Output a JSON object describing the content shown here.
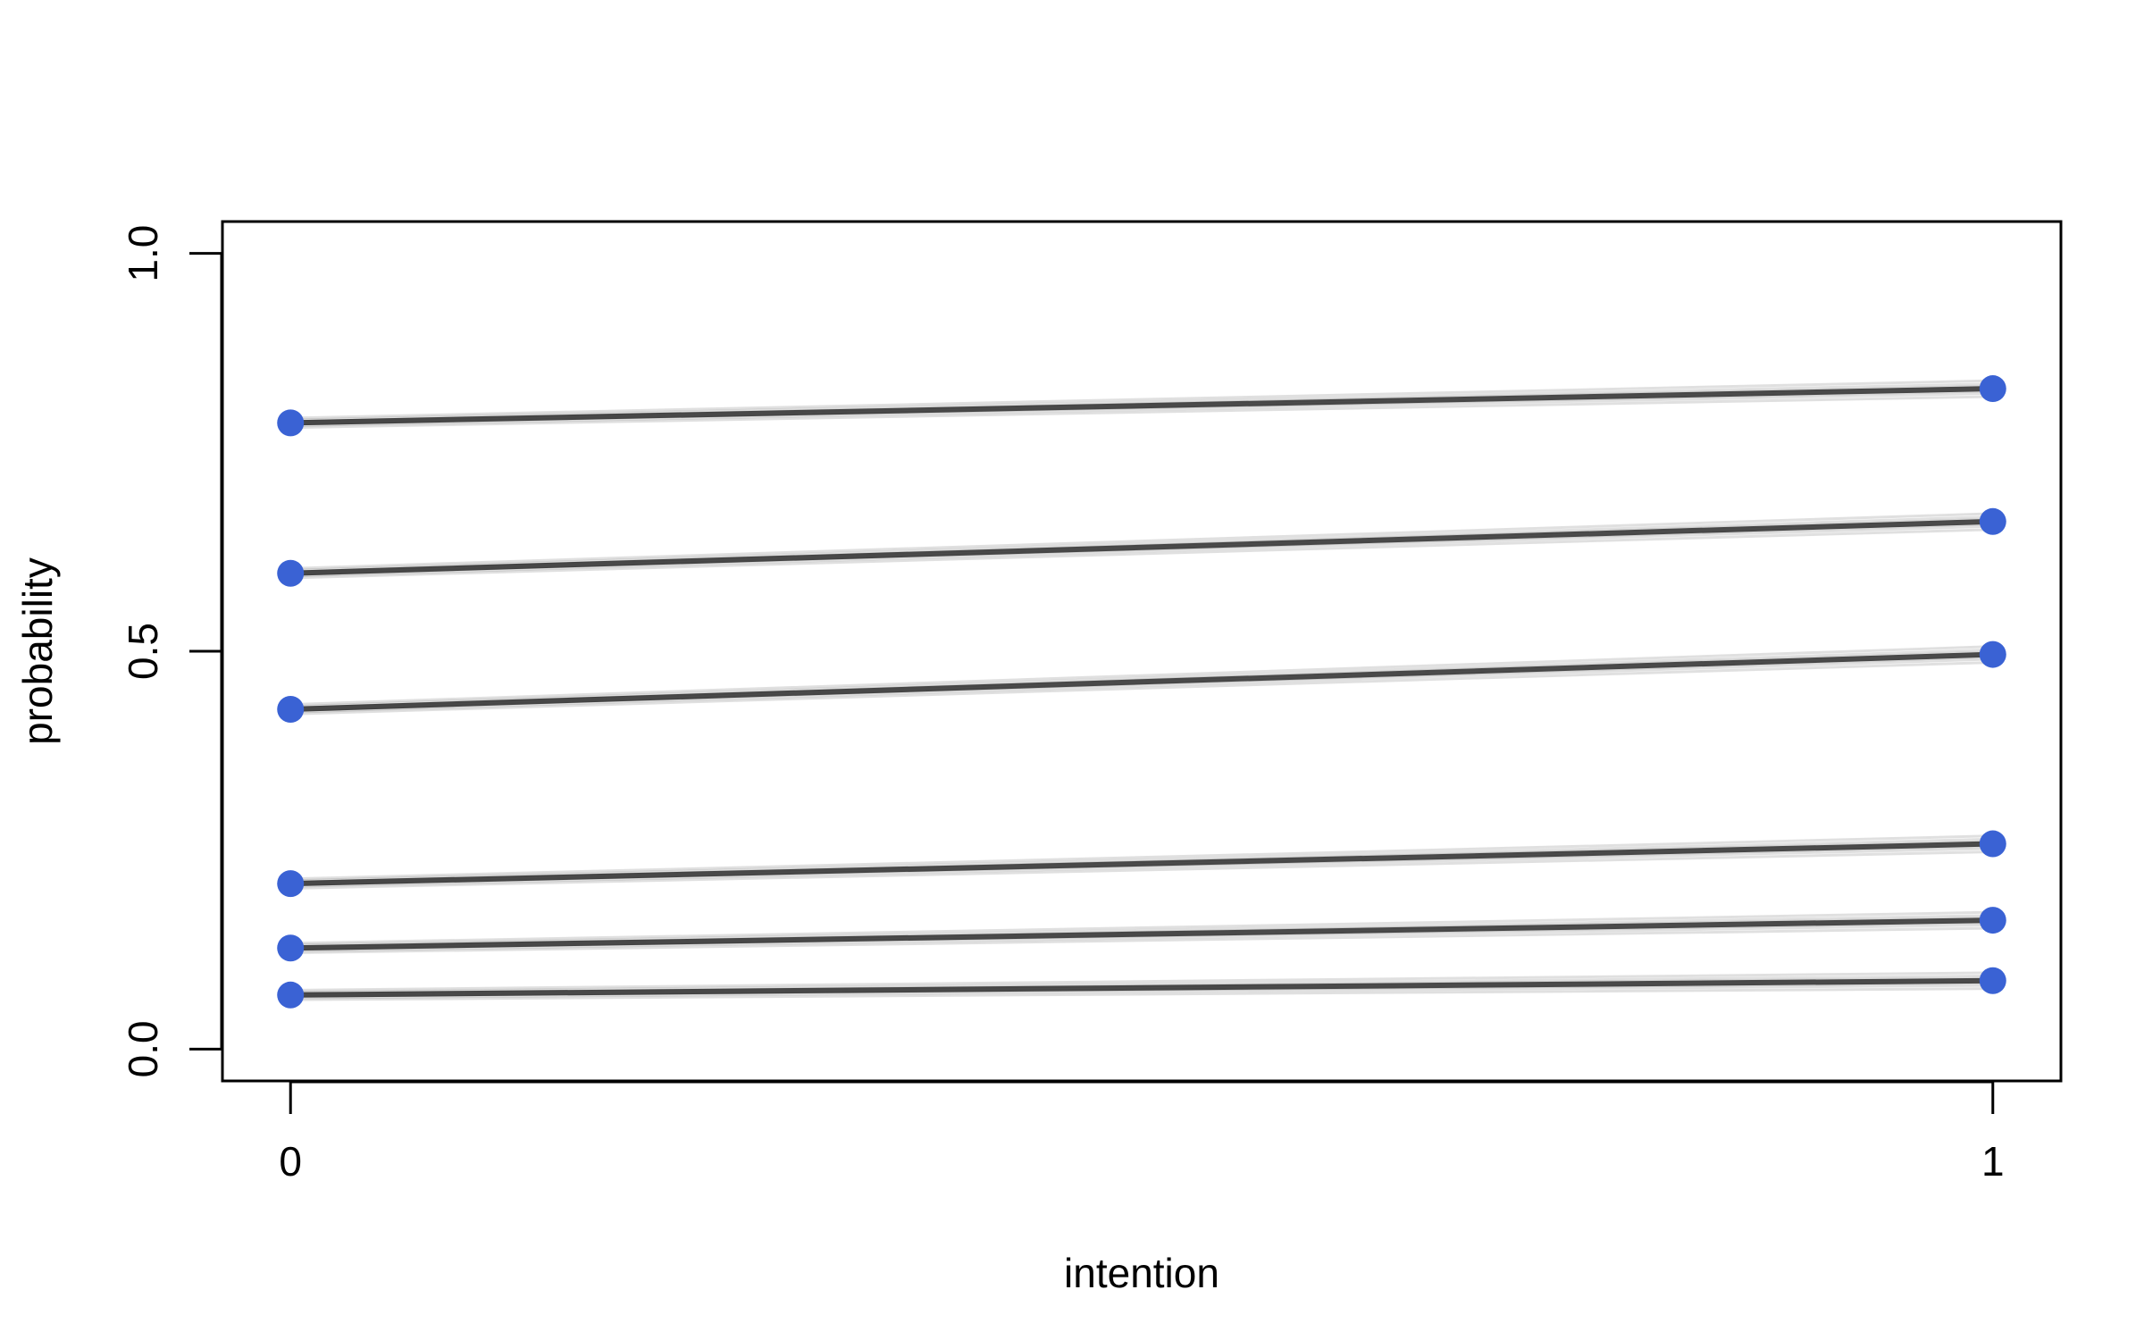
{
  "chart_data": {
    "type": "line",
    "title": "",
    "xlabel": "intention",
    "ylabel": "probability",
    "x": [
      0,
      1
    ],
    "x_tick_labels": [
      "0",
      "1"
    ],
    "y_ticks": [
      0.0,
      0.5,
      1.0
    ],
    "y_tick_labels": [
      "0.0",
      "0.5",
      "1.0"
    ],
    "xlim": [
      -0.04,
      1.04
    ],
    "ylim": [
      -0.04,
      1.04
    ],
    "grid": false,
    "legend": "none",
    "colors": {
      "points": "#3a62d4",
      "lines": "#000000",
      "axes": "#000000"
    },
    "series": [
      {
        "values": [
          0.068,
          0.086
        ]
      },
      {
        "values": [
          0.127,
          0.162
        ]
      },
      {
        "values": [
          0.208,
          0.258
        ]
      },
      {
        "values": [
          0.427,
          0.496
        ]
      },
      {
        "values": [
          0.598,
          0.663
        ]
      },
      {
        "values": [
          0.787,
          0.83
        ]
      }
    ]
  }
}
